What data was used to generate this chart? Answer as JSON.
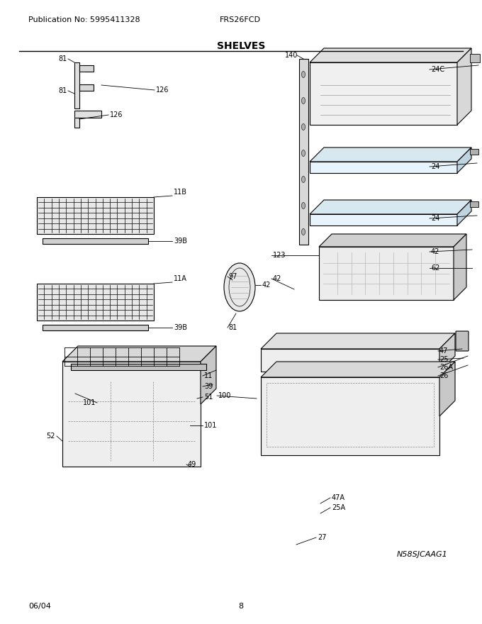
{
  "title": "SHELVES",
  "pub_no": "Publication No: 5995411328",
  "model": "FRS26FCD",
  "date": "06/04",
  "page": "8",
  "diagram_id": "N58SJCAAG1",
  "bg_color": "#ffffff",
  "line_color": "#000000",
  "shelf_depth": 20
}
